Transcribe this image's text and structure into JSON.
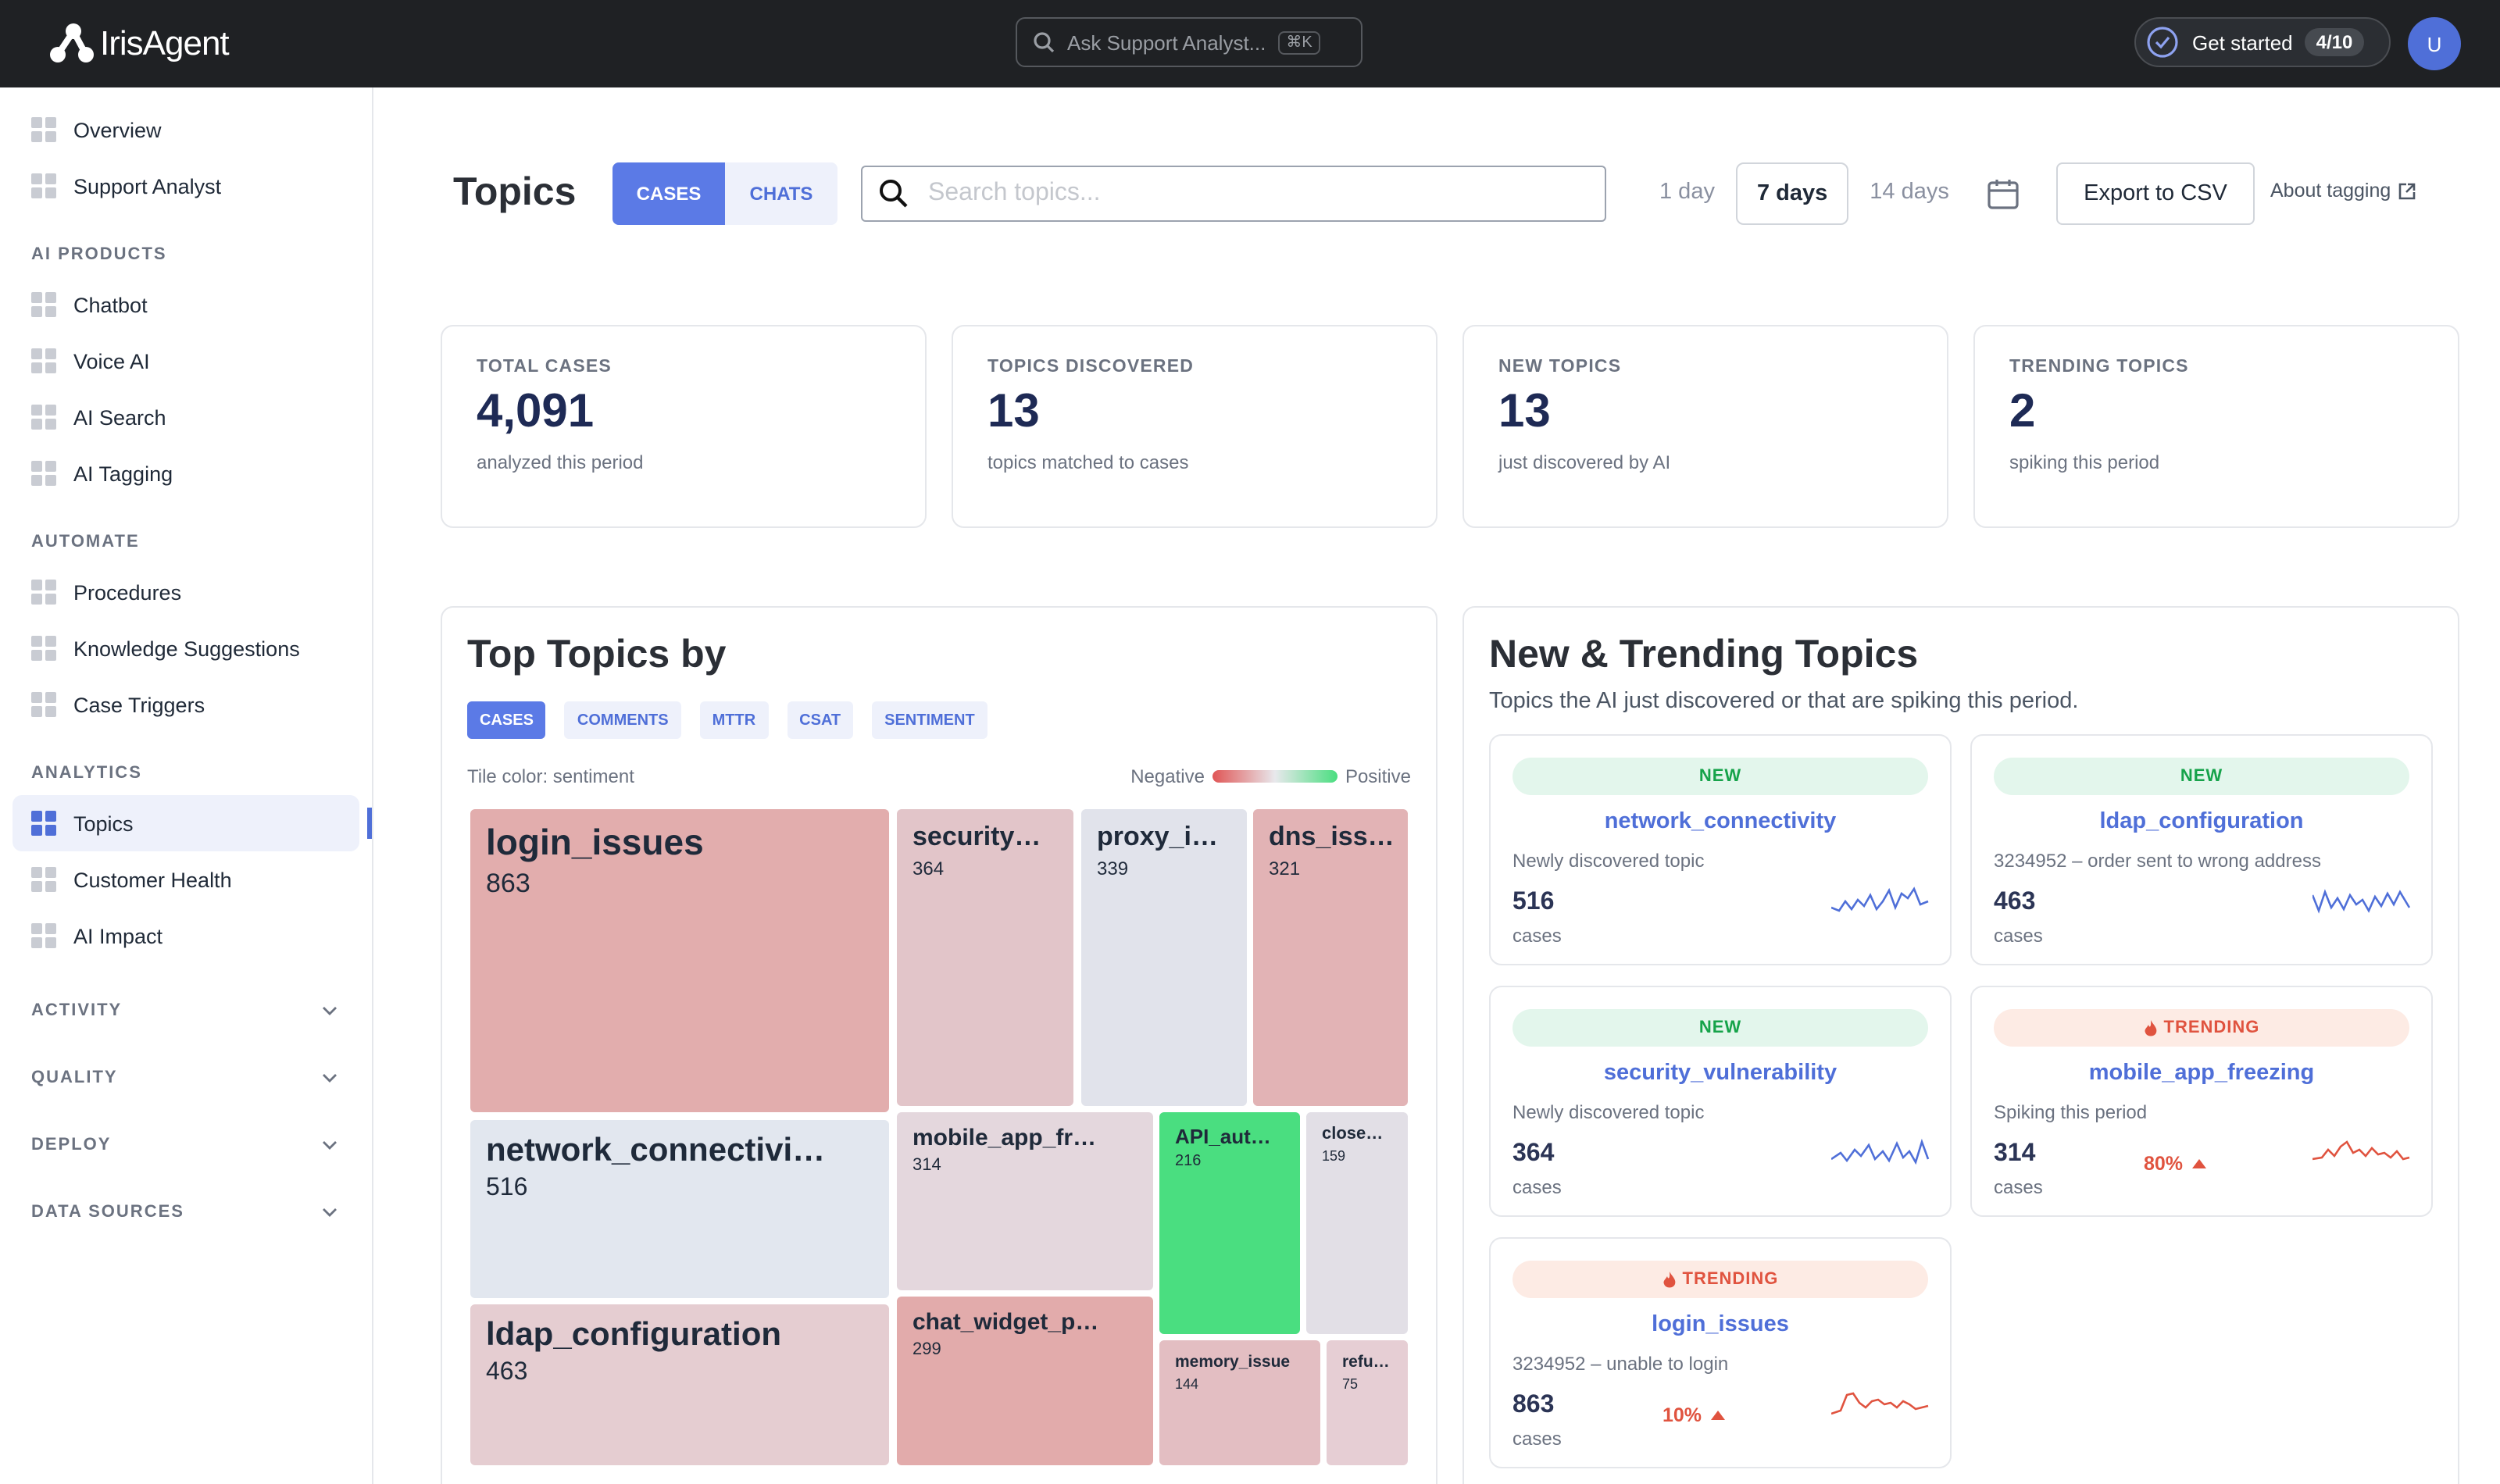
{
  "header": {
    "brand": "IrisAgent",
    "search_placeholder": "Ask Support Analyst...",
    "shortcut": "⌘K",
    "get_started": "Get started",
    "progress": "4/10",
    "avatar": "U"
  },
  "sidebar": {
    "groups": [
      {
        "items": [
          {
            "label": "Overview"
          },
          {
            "label": "Support Analyst"
          }
        ]
      },
      {
        "heading": "AI PRODUCTS",
        "items": [
          {
            "label": "Chatbot"
          },
          {
            "label": "Voice AI"
          },
          {
            "label": "AI Search"
          },
          {
            "label": "AI Tagging"
          }
        ]
      },
      {
        "heading": "AUTOMATE",
        "items": [
          {
            "label": "Procedures"
          },
          {
            "label": "Knowledge Suggestions"
          },
          {
            "label": "Case Triggers"
          }
        ]
      },
      {
        "heading": "ANALYTICS",
        "items": [
          {
            "label": "Topics",
            "active": true
          },
          {
            "label": "Customer Health"
          },
          {
            "label": "AI Impact"
          }
        ]
      }
    ],
    "collapsibles": [
      "ACTIVITY",
      "QUALITY",
      "DEPLOY",
      "DATA SOURCES"
    ]
  },
  "toolbar": {
    "title": "Topics",
    "source_tabs": [
      {
        "label": "CASES",
        "active": true
      },
      {
        "label": "CHATS"
      }
    ],
    "search_placeholder": "Search topics...",
    "ranges": [
      {
        "label": "1 day"
      },
      {
        "label": "7 days",
        "active": true
      },
      {
        "label": "14 days"
      }
    ],
    "export": "Export to CSV",
    "about": "About tagging"
  },
  "stats": [
    {
      "label": "TOTAL CASES",
      "value": "4,091",
      "note": "analyzed this period"
    },
    {
      "label": "TOPICS DISCOVERED",
      "value": "13",
      "note": "topics matched to cases"
    },
    {
      "label": "NEW TOPICS",
      "value": "13",
      "note": "just discovered by AI"
    },
    {
      "label": "TRENDING TOPICS",
      "value": "2",
      "note": "spiking this period"
    }
  ],
  "top_topics": {
    "title": "Top Topics by",
    "metric_tabs": [
      {
        "label": "CASES",
        "active": true
      },
      {
        "label": "COMMENTS"
      },
      {
        "label": "MTTR"
      },
      {
        "label": "CSAT"
      },
      {
        "label": "SENTIMENT"
      }
    ],
    "color_note": "Tile color: sentiment",
    "legend_low": "Negative",
    "legend_high": "Positive",
    "tiles": [
      {
        "name": "login_issues",
        "value": 863,
        "color": "#e2adad"
      },
      {
        "name": "security…",
        "value": 364,
        "color": "#e2c5c9"
      },
      {
        "name": "proxy_i…",
        "value": 339,
        "color": "#e1e3eb"
      },
      {
        "name": "dns_iss…",
        "value": 321,
        "color": "#e2b3b5"
      },
      {
        "name": "network_connectivi…",
        "value": 516,
        "color": "#e2e7ef"
      },
      {
        "name": "ldap_configuration",
        "value": 463,
        "color": "#e5cdd1"
      },
      {
        "name": "mobile_app_fr…",
        "value": 314,
        "color": "#e4d7dd"
      },
      {
        "name": "chat_widget_p…",
        "value": 299,
        "color": "#e2abab"
      },
      {
        "name": "API_aut…",
        "value": 216,
        "color": "#4ade80"
      },
      {
        "name": "close…",
        "value": 159,
        "color": "#e2dfe6"
      },
      {
        "name": "memory_issue",
        "value": 144,
        "color": "#e3bec2"
      },
      {
        "name": "refu…",
        "value": 75,
        "color": "#e6ced4"
      }
    ]
  },
  "trending": {
    "title": "New & Trending Topics",
    "subtitle": "Topics the AI just discovered or that are spiking this period.",
    "cards": [
      {
        "badge": "NEW",
        "badge_bg": "#e3f6ec",
        "badge_fg": "#16a34a",
        "topic": "network_connectivity",
        "note": "Newly discovered topic",
        "count": "516",
        "unit": "cases",
        "line_color": "#4f6fd8"
      },
      {
        "badge": "NEW",
        "badge_bg": "#e3f6ec",
        "badge_fg": "#16a34a",
        "topic": "ldap_configuration",
        "note": "3234952 – order sent to wrong address",
        "count": "463",
        "unit": "cases",
        "line_color": "#4f6fd8"
      },
      {
        "badge": "NEW",
        "badge_bg": "#e3f6ec",
        "badge_fg": "#16a34a",
        "topic": "security_vulnerability",
        "note": "Newly discovered topic",
        "count": "364",
        "unit": "cases",
        "line_color": "#4f6fd8"
      },
      {
        "badge": "TRENDING",
        "badge_bg": "#fdebe4",
        "badge_fg": "#e0533f",
        "topic": "mobile_app_freezing",
        "note": "Spiking this period",
        "count": "314",
        "unit": "cases",
        "change": "80%",
        "line_color": "#e0533f"
      },
      {
        "badge": "TRENDING",
        "badge_bg": "#fdebe4",
        "badge_fg": "#e0533f",
        "topic": "login_issues",
        "note": "3234952 – unable to login",
        "count": "863",
        "unit": "cases",
        "change": "10%",
        "line_color": "#e0533f"
      }
    ]
  }
}
